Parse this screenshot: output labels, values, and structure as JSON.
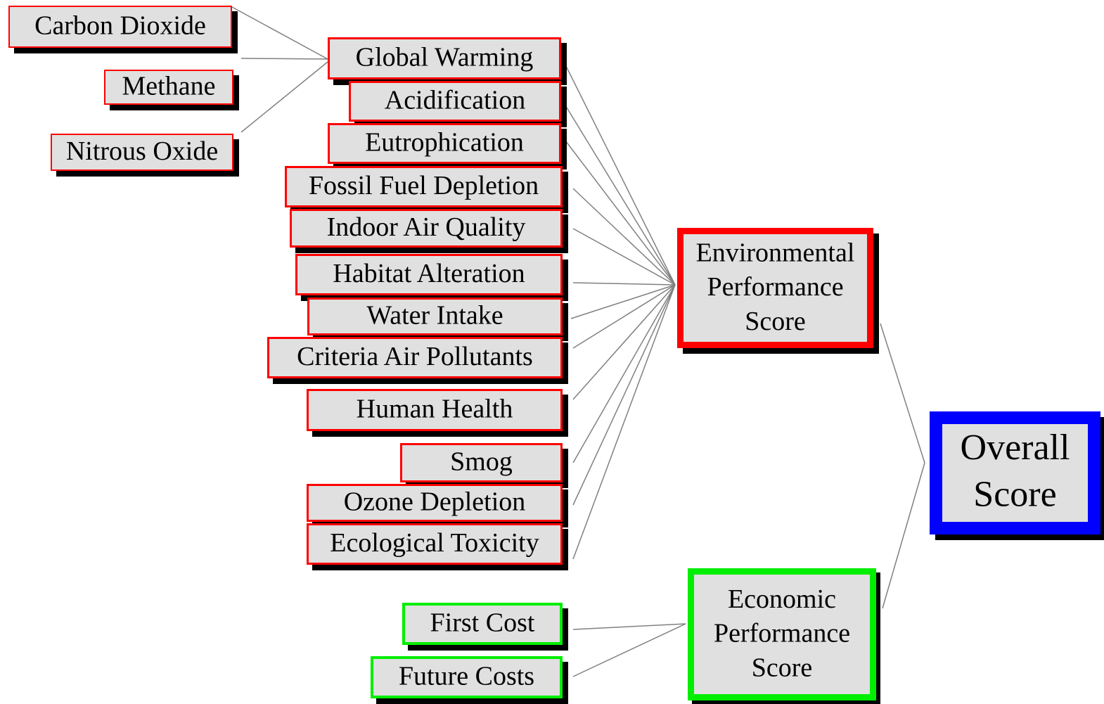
{
  "nodes": [
    {
      "label": "Carbon Dioxide"
    },
    {
      "label": "Methane"
    },
    {
      "label": "Nitrous Oxide"
    },
    {
      "label": "Global Warming"
    },
    {
      "label": "Acidification"
    },
    {
      "label": "Eutrophication"
    },
    {
      "label": "Fossil Fuel Depletion"
    },
    {
      "label": "Indoor Air Quality"
    },
    {
      "label": "Habitat Alteration"
    },
    {
      "label": "Water Intake"
    },
    {
      "label": "Criteria Air Pollutants"
    },
    {
      "label": "Human Health"
    },
    {
      "label": "Smog"
    },
    {
      "label": "Ozone Depletion"
    },
    {
      "label": "Ecological Toxicity"
    },
    {
      "label": "First Cost"
    },
    {
      "label": "Future Costs"
    },
    {
      "lines": [
        "Environmental",
        "Performance",
        "Score"
      ]
    },
    {
      "lines": [
        "Economic",
        "Performance",
        "Score"
      ]
    },
    {
      "lines": [
        "Overall",
        "Score"
      ]
    }
  ]
}
